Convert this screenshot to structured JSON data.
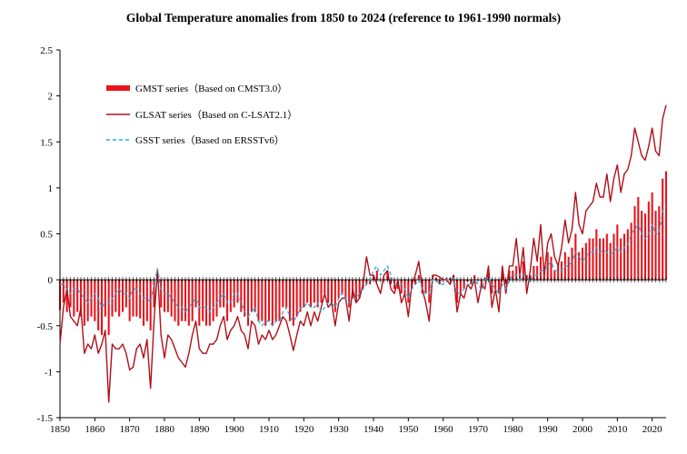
{
  "chart_data": {
    "type": "bar+line",
    "title": "Global Temperature anomalies from 1850 to 2024 (reference to 1961-1990 normals)",
    "xlabel": "",
    "ylabel": "",
    "xlim": [
      1850,
      2024
    ],
    "ylim": [
      -1.5,
      2.5
    ],
    "x_ticks": [
      "1850",
      "1860",
      "1870",
      "1880",
      "1890",
      "1900",
      "1910",
      "1920",
      "1930",
      "1940",
      "1950",
      "1960",
      "1970",
      "1980",
      "1990",
      "2000",
      "2010",
      "2020"
    ],
    "y_ticks": [
      "-1.5",
      "-1",
      "-0.5",
      "0",
      "0.5",
      "1",
      "1.5",
      "2",
      "2.5"
    ],
    "legend_position": "top-left",
    "colors": {
      "gmst": "#e8141b",
      "glsat": "#b01018",
      "gsst": "#29a9e0"
    },
    "years": [
      1850,
      1851,
      1852,
      1853,
      1854,
      1855,
      1856,
      1857,
      1858,
      1859,
      1860,
      1861,
      1862,
      1863,
      1864,
      1865,
      1866,
      1867,
      1868,
      1869,
      1870,
      1871,
      1872,
      1873,
      1874,
      1875,
      1876,
      1877,
      1878,
      1879,
      1880,
      1881,
      1882,
      1883,
      1884,
      1885,
      1886,
      1887,
      1888,
      1889,
      1890,
      1891,
      1892,
      1893,
      1894,
      1895,
      1896,
      1897,
      1898,
      1899,
      1900,
      1901,
      1902,
      1903,
      1904,
      1905,
      1906,
      1907,
      1908,
      1909,
      1910,
      1911,
      1912,
      1913,
      1914,
      1915,
      1916,
      1917,
      1918,
      1919,
      1920,
      1921,
      1922,
      1923,
      1924,
      1925,
      1926,
      1927,
      1928,
      1929,
      1930,
      1931,
      1932,
      1933,
      1934,
      1935,
      1936,
      1937,
      1938,
      1939,
      1940,
      1941,
      1942,
      1943,
      1944,
      1945,
      1946,
      1947,
      1948,
      1949,
      1950,
      1951,
      1952,
      1953,
      1954,
      1955,
      1956,
      1957,
      1958,
      1959,
      1960,
      1961,
      1962,
      1963,
      1964,
      1965,
      1966,
      1967,
      1968,
      1969,
      1970,
      1971,
      1972,
      1973,
      1974,
      1975,
      1976,
      1977,
      1978,
      1979,
      1980,
      1981,
      1982,
      1983,
      1984,
      1985,
      1986,
      1987,
      1988,
      1989,
      1990,
      1991,
      1992,
      1993,
      1994,
      1995,
      1996,
      1997,
      1998,
      1999,
      2000,
      2001,
      2002,
      2003,
      2004,
      2005,
      2006,
      2007,
      2008,
      2009,
      2010,
      2011,
      2012,
      2013,
      2014,
      2015,
      2016,
      2017,
      2018,
      2019,
      2020,
      2021,
      2022,
      2023,
      2024
    ],
    "series": [
      {
        "name": "GMST series（Based on CMST3.0）",
        "style": "bar",
        "values": [
          -0.33,
          -0.25,
          -0.35,
          -0.3,
          -0.4,
          -0.35,
          -0.4,
          -0.5,
          -0.45,
          -0.4,
          -0.45,
          -0.55,
          -0.6,
          -0.4,
          -0.6,
          -0.4,
          -0.35,
          -0.4,
          -0.35,
          -0.3,
          -0.45,
          -0.4,
          -0.4,
          -0.42,
          -0.5,
          -0.45,
          -0.55,
          -0.3,
          0.05,
          -0.3,
          -0.35,
          -0.35,
          -0.4,
          -0.45,
          -0.5,
          -0.45,
          -0.45,
          -0.5,
          -0.45,
          -0.3,
          -0.5,
          -0.45,
          -0.5,
          -0.5,
          -0.45,
          -0.4,
          -0.3,
          -0.3,
          -0.45,
          -0.35,
          -0.3,
          -0.25,
          -0.35,
          -0.4,
          -0.5,
          -0.35,
          -0.35,
          -0.45,
          -0.45,
          -0.5,
          -0.45,
          -0.5,
          -0.45,
          -0.45,
          -0.3,
          -0.3,
          -0.45,
          -0.5,
          -0.4,
          -0.35,
          -0.3,
          -0.25,
          -0.3,
          -0.25,
          -0.3,
          -0.25,
          -0.15,
          -0.25,
          -0.25,
          -0.35,
          -0.2,
          -0.15,
          -0.2,
          -0.3,
          -0.2,
          -0.25,
          -0.2,
          -0.1,
          -0.05,
          -0.05,
          0.05,
          0.1,
          0.0,
          0.0,
          0.1,
          -0.05,
          -0.1,
          -0.1,
          -0.15,
          -0.15,
          -0.25,
          -0.1,
          -0.05,
          0.05,
          -0.15,
          -0.15,
          -0.25,
          0.05,
          0.02,
          -0.05,
          0.0,
          0.02,
          0.02,
          0.05,
          -0.25,
          -0.15,
          -0.1,
          -0.02,
          -0.05,
          0.05,
          0.0,
          -0.1,
          0.02,
          0.08,
          -0.15,
          -0.1,
          -0.15,
          0.1,
          -0.05,
          0.1,
          0.1,
          0.15,
          0.05,
          0.2,
          0.05,
          0.05,
          0.15,
          0.15,
          0.25,
          0.15,
          0.3,
          0.25,
          0.1,
          0.15,
          0.2,
          0.3,
          0.25,
          0.35,
          0.5,
          0.3,
          0.35,
          0.4,
          0.45,
          0.45,
          0.55,
          0.45,
          0.45,
          0.5,
          0.4,
          0.5,
          0.6,
          0.45,
          0.5,
          0.55,
          0.62,
          0.8,
          0.9,
          0.75,
          0.72,
          0.85,
          0.95,
          0.75,
          0.8,
          1.1,
          1.18
        ]
      },
      {
        "name": "GLSAT series（Based on C-LSAT2.1）",
        "style": "line",
        "values": [
          -0.7,
          -0.3,
          -0.1,
          -0.4,
          -0.45,
          -0.5,
          -0.3,
          -0.8,
          -0.7,
          -0.75,
          -0.6,
          -0.8,
          -0.7,
          -0.55,
          -1.33,
          -0.7,
          -0.75,
          -0.75,
          -0.7,
          -0.8,
          -0.98,
          -0.95,
          -0.75,
          -0.7,
          -0.85,
          -0.65,
          -1.18,
          -0.45,
          0.12,
          -0.6,
          -0.85,
          -0.6,
          -0.65,
          -0.75,
          -0.85,
          -0.9,
          -0.95,
          -0.8,
          -0.6,
          -0.45,
          -0.75,
          -0.8,
          -0.8,
          -0.7,
          -0.7,
          -0.65,
          -0.5,
          -0.4,
          -0.65,
          -0.55,
          -0.5,
          -0.4,
          -0.55,
          -0.6,
          -0.75,
          -0.45,
          -0.5,
          -0.7,
          -0.6,
          -0.65,
          -0.55,
          -0.65,
          -0.6,
          -0.5,
          -0.4,
          -0.45,
          -0.6,
          -0.77,
          -0.6,
          -0.45,
          -0.5,
          -0.35,
          -0.5,
          -0.35,
          -0.45,
          -0.3,
          -0.15,
          -0.3,
          -0.25,
          -0.5,
          -0.25,
          -0.2,
          -0.2,
          -0.45,
          -0.1,
          -0.25,
          -0.2,
          -0.05,
          0.25,
          0.05,
          0.05,
          -0.05,
          -0.15,
          0.05,
          0.1,
          -0.1,
          -0.15,
          0.0,
          -0.25,
          -0.15,
          -0.4,
          -0.05,
          0.05,
          0.2,
          -0.1,
          -0.25,
          -0.45,
          0.05,
          0.05,
          0.03,
          0.0,
          0.0,
          -0.05,
          0.05,
          -0.35,
          -0.15,
          -0.2,
          -0.05,
          -0.1,
          0.0,
          -0.25,
          -0.05,
          -0.1,
          0.15,
          -0.3,
          -0.1,
          -0.35,
          0.15,
          -0.15,
          0.15,
          0.15,
          0.45,
          0.05,
          0.35,
          -0.15,
          0.1,
          0.45,
          0.2,
          0.6,
          0.05,
          0.4,
          0.5,
          0.25,
          0.15,
          0.35,
          0.65,
          0.4,
          0.55,
          0.95,
          0.6,
          0.5,
          0.75,
          0.8,
          0.85,
          1.05,
          0.9,
          0.9,
          1.15,
          0.85,
          1.1,
          1.25,
          0.95,
          1.15,
          1.2,
          1.35,
          1.65,
          1.5,
          1.35,
          1.3,
          1.45,
          1.65,
          1.4,
          1.35,
          1.75,
          1.9
        ]
      },
      {
        "name": "GSST series（Based on ERSSTv6）",
        "style": "dashed-line",
        "values": [
          -0.05,
          -0.05,
          -0.1,
          -0.15,
          -0.1,
          -0.1,
          -0.15,
          -0.2,
          -0.25,
          -0.2,
          -0.15,
          -0.2,
          -0.3,
          -0.25,
          -0.25,
          -0.2,
          -0.15,
          -0.1,
          -0.15,
          -0.15,
          -0.2,
          -0.1,
          -0.1,
          -0.15,
          -0.2,
          -0.2,
          -0.25,
          -0.05,
          0.12,
          -0.1,
          -0.15,
          -0.15,
          -0.2,
          -0.25,
          -0.3,
          -0.3,
          -0.35,
          -0.3,
          -0.25,
          -0.2,
          -0.3,
          -0.3,
          -0.3,
          -0.35,
          -0.3,
          -0.25,
          -0.2,
          -0.15,
          -0.25,
          -0.25,
          -0.15,
          -0.15,
          -0.25,
          -0.35,
          -0.4,
          -0.35,
          -0.3,
          -0.45,
          -0.5,
          -0.45,
          -0.45,
          -0.5,
          -0.45,
          -0.45,
          -0.35,
          -0.3,
          -0.4,
          -0.45,
          -0.4,
          -0.3,
          -0.3,
          -0.25,
          -0.3,
          -0.3,
          -0.25,
          -0.35,
          -0.3,
          -0.25,
          -0.25,
          -0.3,
          -0.2,
          -0.15,
          -0.2,
          -0.25,
          -0.2,
          -0.2,
          -0.15,
          -0.1,
          -0.05,
          0.0,
          0.1,
          0.15,
          0.05,
          0.1,
          0.15,
          0.05,
          -0.05,
          -0.05,
          -0.05,
          -0.1,
          -0.2,
          -0.1,
          -0.05,
          0.0,
          -0.1,
          -0.15,
          -0.15,
          0.0,
          0.0,
          -0.05,
          -0.05,
          0.0,
          0.0,
          0.02,
          -0.15,
          -0.15,
          -0.1,
          -0.05,
          -0.05,
          0.0,
          -0.05,
          -0.1,
          0.0,
          0.03,
          -0.05,
          -0.1,
          -0.15,
          -0.05,
          -0.1,
          0.0,
          0.05,
          0.05,
          0.0,
          0.05,
          0.02,
          -0.02,
          0.05,
          0.05,
          0.1,
          0.1,
          0.15,
          0.2,
          0.1,
          0.1,
          0.1,
          0.15,
          0.15,
          0.2,
          0.3,
          0.25,
          0.2,
          0.25,
          0.3,
          0.3,
          0.35,
          0.3,
          0.32,
          0.3,
          0.28,
          0.3,
          0.35,
          0.3,
          0.35,
          0.38,
          0.5,
          0.55,
          0.6,
          0.5,
          0.45,
          0.5,
          0.6,
          0.5,
          0.5,
          0.75,
          0.8
        ]
      }
    ]
  }
}
